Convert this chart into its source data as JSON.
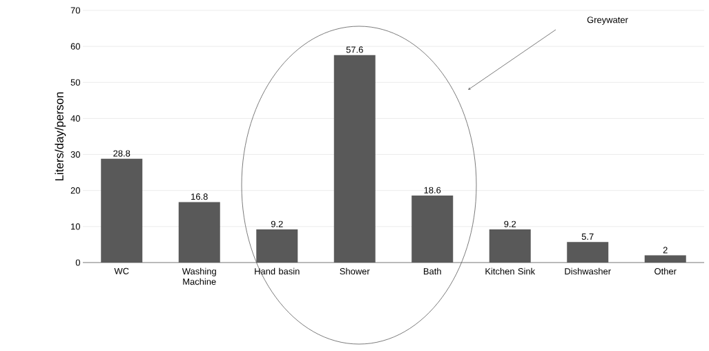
{
  "chart_data": {
    "type": "bar",
    "ylabel": "Liters/day/person",
    "categories": [
      "WC",
      "Washing Machine",
      "Hand basin",
      "Shower",
      "Bath",
      "Kitchen Sink",
      "Dishwasher",
      "Other"
    ],
    "values": [
      28.8,
      16.8,
      9.2,
      57.6,
      18.6,
      9.2,
      5.7,
      2
    ],
    "color": "#595959",
    "ylim": [
      0,
      70
    ],
    "yticks": [
      0,
      10,
      20,
      30,
      40,
      50,
      60,
      70
    ],
    "grid": "y",
    "data_labels": true,
    "annotations": [
      "Greywater"
    ]
  }
}
